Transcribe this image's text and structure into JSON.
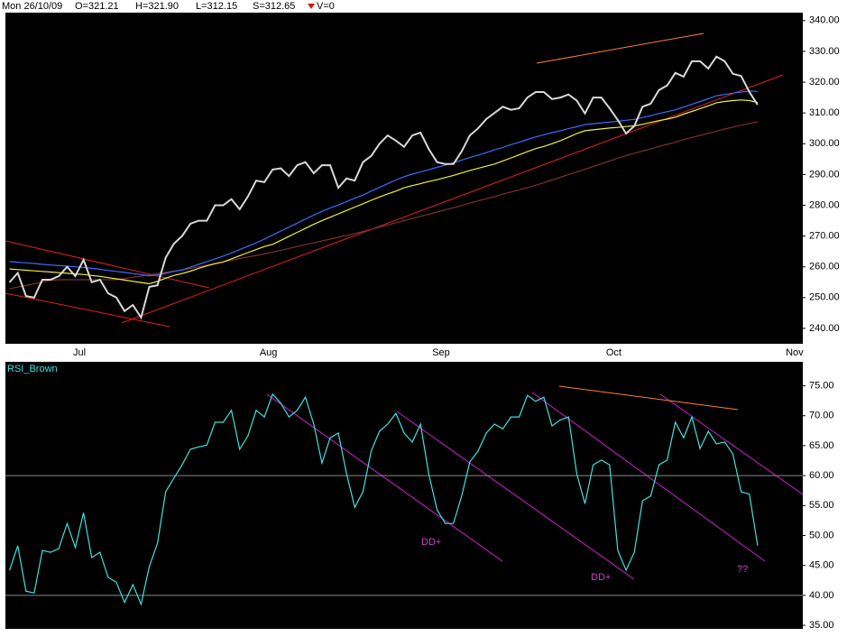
{
  "header": {
    "date": "Mon 26/10/09",
    "open": "O=321.21",
    "high": "H=321.90",
    "low": "L=312.15",
    "close": "S=312.65",
    "volume": "V=0"
  },
  "chart_data": [
    {
      "type": "line",
      "categories": [
        null,
        null,
        null,
        null,
        null,
        null,
        null,
        null,
        null,
        "Jul",
        null,
        null,
        null,
        null,
        null,
        null,
        null,
        null,
        null,
        null,
        null,
        null,
        null,
        null,
        null,
        null,
        null,
        null,
        null,
        null,
        null,
        null,
        "Aug",
        null,
        null,
        null,
        null,
        null,
        null,
        null,
        null,
        null,
        null,
        null,
        null,
        null,
        null,
        null,
        null,
        null,
        null,
        null,
        null,
        "Sep",
        null,
        null,
        null,
        null,
        null,
        null,
        null,
        null,
        null,
        null,
        null,
        null,
        null,
        null,
        null,
        null,
        null,
        null,
        null,
        null,
        "Oct",
        null,
        null,
        null,
        null,
        null,
        null,
        null,
        null,
        null,
        null,
        null,
        null,
        null,
        null,
        null,
        null,
        null,
        null,
        null,
        null,
        null,
        "Nov"
      ],
      "series": [
        {
          "color": "#d8d8d8",
          "values": [
            255,
            258,
            250.5,
            250,
            255.8,
            255.8,
            257,
            260,
            257,
            262.3,
            255,
            255.8,
            251.4,
            250,
            245.6,
            247.6,
            243.5,
            253.5,
            254,
            263,
            267.5,
            270,
            274,
            275,
            275,
            280,
            280,
            282,
            278.7,
            282.8,
            288,
            287.5,
            291.6,
            292,
            289.5,
            293,
            294,
            290.4,
            293,
            293,
            285.7,
            288.7,
            288,
            294,
            296,
            300,
            302.7,
            301,
            299,
            302.7,
            303.6,
            298.3,
            294,
            293.4,
            293.4,
            297.5,
            302.7,
            305,
            308,
            310,
            312,
            311,
            311.5,
            315,
            316.8,
            316.8,
            314.5,
            315,
            316,
            314,
            309.8,
            315,
            315,
            311.5,
            307.7,
            303.3,
            305.7,
            312,
            313,
            317.4,
            318.9,
            323,
            321.8,
            326.8,
            326.8,
            324.4,
            328.3,
            326.8,
            322.7,
            322,
            316.8,
            312.65,
            null,
            null,
            null,
            null,
            null
          ]
        },
        {
          "color": "#3a6cff",
          "values": [
            261.7,
            261.5,
            261.3,
            261.1,
            260.8,
            260.6,
            260.4,
            260.2,
            260.0,
            259.8,
            259.5,
            259.2,
            258.8,
            258.5,
            258.2,
            257.8,
            257.5,
            257.1,
            257.3,
            257.9,
            258.5,
            259.0,
            259.9,
            260.8,
            261.7,
            262.6,
            263.5,
            264.5,
            265.6,
            266.7,
            267.8,
            269.0,
            270.3,
            271.6,
            272.9,
            274.2,
            275.5,
            276.8,
            278.0,
            279.1,
            280.1,
            281.2,
            282.3,
            283.3,
            284.6,
            285.8,
            287.0,
            288.2,
            289.3,
            290.1,
            290.8,
            291.6,
            292.3,
            293.0,
            293.8,
            294.7,
            295.5,
            296.3,
            297.1,
            298.0,
            298.8,
            299.7,
            300.5,
            301.4,
            302.2,
            302.9,
            303.6,
            304.2,
            304.9,
            305.5,
            306.2,
            306.5,
            306.8,
            307.0,
            307.3,
            307.6,
            307.9,
            308.5,
            309.1,
            309.8,
            310.4,
            311.0,
            311.9,
            312.8,
            313.7,
            314.6,
            315.6,
            316.0,
            316.4,
            316.8,
            317.1,
            317.0,
            null,
            null,
            null,
            null,
            null
          ]
        },
        {
          "color": "#f0f040",
          "values": [
            259.3,
            259.1,
            258.9,
            258.7,
            258.5,
            258.3,
            258.1,
            257.9,
            257.7,
            257.5,
            257.2,
            256.9,
            256.5,
            256.1,
            255.7,
            255.3,
            254.9,
            254.5,
            255.3,
            256.3,
            257.2,
            257.8,
            258.6,
            259.5,
            260.3,
            261.0,
            261.6,
            262.6,
            263.6,
            264.6,
            265.6,
            266.6,
            267.3,
            268.6,
            269.9,
            271.2,
            272.5,
            273.8,
            275.0,
            276.1,
            277.2,
            278.3,
            279.4,
            280.5,
            281.6,
            282.7,
            283.7,
            284.6,
            285.7,
            286.4,
            287.0,
            287.7,
            288.3,
            289.0,
            289.7,
            290.5,
            291.3,
            292.0,
            292.7,
            293.4,
            294.4,
            295.4,
            296.4,
            297.4,
            298.4,
            299.1,
            300.0,
            301.0,
            302.1,
            303.3,
            304.2,
            304.5,
            304.8,
            305.1,
            305.3,
            305.6,
            305.8,
            306.3,
            306.9,
            307.5,
            308.0,
            308.6,
            309.6,
            310.5,
            311.4,
            312.3,
            313.3,
            313.7,
            314.0,
            314.2,
            314.0,
            313.4,
            null,
            null,
            null,
            null,
            null
          ]
        },
        {
          "color": "#7e3030",
          "values": [
            252.9,
            253.4,
            253.9,
            254.5,
            255.0,
            255.6,
            255.8,
            255.8,
            255.8,
            255.8,
            255.8,
            255.8,
            255.8,
            255.8,
            256.2,
            256.6,
            257.0,
            257.4,
            257.8,
            258.2,
            258.6,
            258.9,
            259.5,
            260.0,
            260.5,
            261.1,
            261.6,
            262.1,
            262.7,
            263.2,
            263.7,
            264.2,
            264.8,
            265.4,
            266.0,
            266.6,
            267.2,
            267.8,
            268.4,
            269.0,
            269.6,
            270.2,
            270.8,
            271.5,
            272.2,
            272.9,
            273.6,
            274.3,
            275.0,
            275.7,
            276.4,
            277.1,
            277.8,
            278.5,
            279.2,
            279.9,
            280.7,
            281.4,
            282.1,
            282.8,
            283.6,
            284.3,
            285.0,
            285.7,
            286.5,
            287.3,
            288.2,
            289.1,
            290.0,
            290.8,
            291.7,
            292.6,
            293.5,
            294.4,
            295.3,
            296.1,
            296.9,
            297.6,
            298.3,
            299.1,
            299.8,
            300.5,
            301.3,
            302.0,
            302.7,
            303.4,
            304.1,
            304.8,
            305.4,
            306.0,
            306.6,
            307.1,
            null,
            null,
            null,
            null,
            null
          ]
        }
      ],
      "ylim": [
        235,
        342
      ],
      "yticks": [
        {
          "value": 340,
          "label": "340.00"
        },
        {
          "value": 330,
          "label": "330.00"
        },
        {
          "value": 320,
          "label": "320.00"
        },
        {
          "value": 310,
          "label": "310.00"
        },
        {
          "value": 300,
          "label": "300.00"
        },
        {
          "value": 290,
          "label": "290.00"
        },
        {
          "value": 280,
          "label": "280.00"
        },
        {
          "value": 270,
          "label": "270.00"
        },
        {
          "value": 260,
          "label": "260.00"
        },
        {
          "value": 250,
          "label": "250.00"
        },
        {
          "value": 240,
          "label": "240.00"
        }
      ]
    },
    {
      "type": "line",
      "title": "RSI_Brown",
      "series": [
        {
          "color": "#40e0e0",
          "values": [
            44.2,
            48.3,
            40.7,
            40.4,
            47.5,
            47.2,
            47.8,
            52,
            48,
            53.8,
            46.3,
            47.2,
            43,
            42.2,
            38.8,
            41.8,
            38.5,
            44.8,
            48.7,
            57.3,
            59.6,
            61.8,
            64.4,
            64.8,
            65.1,
            68.9,
            68.9,
            70.9,
            64.4,
            66.6,
            70.9,
            69.8,
            73.6,
            72.1,
            69.8,
            70.9,
            73.1,
            68.6,
            62.1,
            66.3,
            67.1,
            60.3,
            54.7,
            57.3,
            64.1,
            67.4,
            68.6,
            70.4,
            67.1,
            65.6,
            68.6,
            60.3,
            54.3,
            52,
            52,
            56.6,
            62.3,
            64.1,
            67.1,
            68.6,
            67.8,
            69.8,
            69.8,
            73.4,
            72.4,
            73.1,
            68.3,
            69.3,
            69.8,
            60.3,
            55.3,
            61.8,
            62.6,
            61.8,
            47.5,
            44.2,
            47.2,
            55.8,
            56.6,
            61.8,
            62.6,
            68.9,
            66.3,
            69.8,
            64.5,
            67.4,
            65.3,
            65.6,
            63.6,
            57.3,
            56.9,
            48.3,
            null,
            null,
            null,
            null,
            null
          ]
        }
      ],
      "ylim": [
        33.5,
        79
      ],
      "yticks": [
        {
          "value": 75,
          "label": "75.00"
        },
        {
          "value": 70,
          "label": "70.00"
        },
        {
          "value": 65,
          "label": "65.00"
        },
        {
          "value": 60,
          "label": "60.00"
        },
        {
          "value": 55,
          "label": "55.00"
        },
        {
          "value": 50,
          "label": "50.00"
        },
        {
          "value": 45,
          "label": "45.00"
        },
        {
          "value": 40,
          "label": "40.00"
        },
        {
          "value": 35,
          "label": "35.00"
        }
      ],
      "reference_lines": [
        60,
        40
      ],
      "annotations": [
        "DD+",
        "DD+",
        "??"
      ]
    }
  ]
}
